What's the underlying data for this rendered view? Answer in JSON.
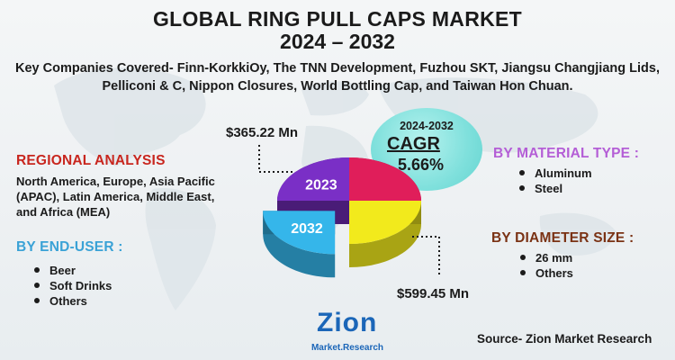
{
  "title_line1": "GLOBAL RING PULL CAPS MARKET",
  "title_line2": "2024 – 2032",
  "companies_text": "Key Companies Covered- Finn-KorkkiOy, The TNN Development, Fuzhou SKT, Jiangsu Changjiang Lids, Pelliconi & C, Nippon Closures, World Bottling Cap, and Taiwan Hon Chuan.",
  "regional": {
    "heading": "REGIONAL ANALYSIS",
    "body": "North America, Europe, Asia Pacific (APAC), Latin America, Middle East, and Africa (MEA)"
  },
  "end_user": {
    "heading": "BY END-USER :",
    "items": [
      "Beer",
      "Soft Drinks",
      "Others"
    ]
  },
  "material": {
    "heading": "BY MATERIAL TYPE :",
    "items": [
      "Aluminum",
      "Steel"
    ]
  },
  "diameter": {
    "heading": "BY DIAMETER SIZE :",
    "items": [
      "26 mm",
      "Others"
    ]
  },
  "cagr": {
    "period": "2024-2032",
    "label": "CAGR",
    "value": "5.66%"
  },
  "logo": {
    "top": "Zion",
    "bottom": "Market.Research"
  },
  "source": "Source- Zion Market Research",
  "chart_data": {
    "type": "pie",
    "style": "3d exploded",
    "series": [
      {
        "label": "2023",
        "value_text": "$365.22 Mn",
        "value": 365.22,
        "unit": "Mn"
      },
      {
        "label": "2032",
        "value_text": "$599.45 Mn",
        "value": 599.45,
        "unit": "Mn"
      }
    ],
    "slices": [
      {
        "label": "2023",
        "fraction": 0.25,
        "color": "#7a2fc6"
      },
      {
        "fraction": 0.25,
        "color": "#e01e5a"
      },
      {
        "fraction": 0.25,
        "color": "#f2ea1c"
      },
      {
        "label": "2032",
        "fraction": 0.25,
        "color": "#35b6ea"
      }
    ]
  },
  "colors": {
    "regional_heading": "#c8261e",
    "end_user_heading": "#3aa2d6",
    "material_heading": "#b45ed6",
    "diameter_heading": "#7a3214",
    "cagr_bubble": "#7fe0dc"
  }
}
